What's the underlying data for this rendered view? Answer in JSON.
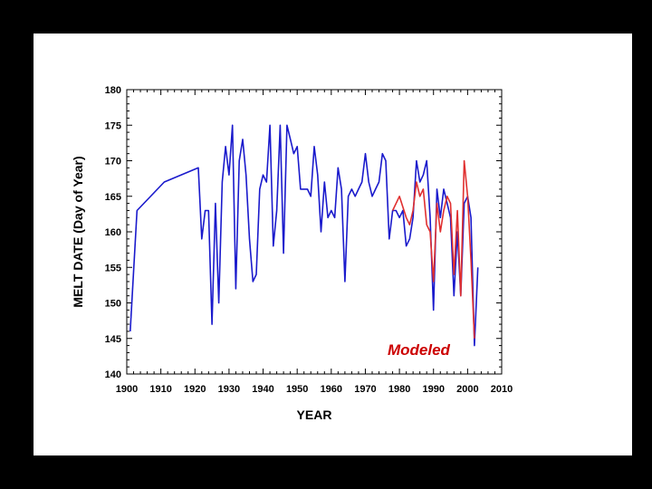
{
  "colors": {
    "background": "#000000",
    "panel": "#ffffff",
    "observed": "#1a1acc",
    "modeled": "#e03030",
    "annotation": "#cc0000"
  },
  "chart_data": {
    "type": "line",
    "xlabel": "YEAR",
    "ylabel": "MELT DATE (Day of Year)",
    "xlim": [
      1900,
      2010
    ],
    "ylim": [
      140,
      180
    ],
    "xticks": [
      1900,
      1910,
      1920,
      1930,
      1940,
      1950,
      1960,
      1970,
      1980,
      1990,
      2000,
      2010
    ],
    "yticks": [
      140,
      145,
      150,
      155,
      160,
      165,
      170,
      175,
      180
    ],
    "grid": false,
    "annotations": [
      {
        "text": "Modeled"
      }
    ],
    "series": [
      {
        "color": "#1a1acc",
        "x": [
          1901,
          1903,
          1911,
          1921,
          1922,
          1923,
          1924,
          1925,
          1926,
          1927,
          1928,
          1929,
          1930,
          1931,
          1932,
          1933,
          1934,
          1935,
          1936,
          1937,
          1938,
          1939,
          1940,
          1941,
          1942,
          1943,
          1944,
          1945,
          1946,
          1947,
          1948,
          1949,
          1950,
          1951,
          1952,
          1953,
          1954,
          1955,
          1956,
          1957,
          1958,
          1959,
          1960,
          1961,
          1962,
          1963,
          1964,
          1965,
          1966,
          1967,
          1968,
          1969,
          1970,
          1971,
          1972,
          1973,
          1974,
          1975,
          1976,
          1977,
          1978,
          1979,
          1980,
          1981,
          1982,
          1983,
          1984,
          1985,
          1986,
          1987,
          1988,
          1989,
          1990,
          1991,
          1992,
          1993,
          1994,
          1995,
          1996,
          1997,
          1998,
          1999,
          2000,
          2001,
          2002,
          2003
        ],
        "y": [
          146,
          163,
          167,
          169,
          159,
          163,
          163,
          147,
          164,
          150,
          167,
          172,
          168,
          175,
          152,
          170,
          173,
          168,
          159,
          153,
          154,
          166,
          168,
          167,
          175,
          158,
          163,
          175,
          157,
          175,
          173,
          171,
          172,
          166,
          166,
          166,
          165,
          172,
          168,
          160,
          167,
          162,
          163,
          162,
          169,
          166,
          153,
          165,
          166,
          165,
          166,
          167,
          171,
          167,
          165,
          166,
          167,
          171,
          170,
          159,
          163,
          163,
          162,
          163,
          158,
          159,
          162,
          170,
          167,
          168,
          170,
          162,
          149,
          166,
          162,
          166,
          164,
          162,
          151,
          160,
          151,
          164,
          165,
          162,
          144,
          155
        ]
      },
      {
        "color": "#e03030",
        "x": [
          1978,
          1980,
          1982,
          1983,
          1984,
          1985,
          1986,
          1987,
          1988,
          1989,
          1990,
          1991,
          1992,
          1993,
          1994,
          1995,
          1996,
          1997,
          1998,
          1999,
          2000,
          2001,
          2002
        ],
        "y": [
          163,
          165,
          162,
          161,
          163,
          167,
          165,
          166,
          161,
          160,
          153,
          164,
          160,
          163,
          165,
          164,
          154,
          163,
          151,
          170,
          165,
          156,
          145
        ]
      }
    ]
  }
}
